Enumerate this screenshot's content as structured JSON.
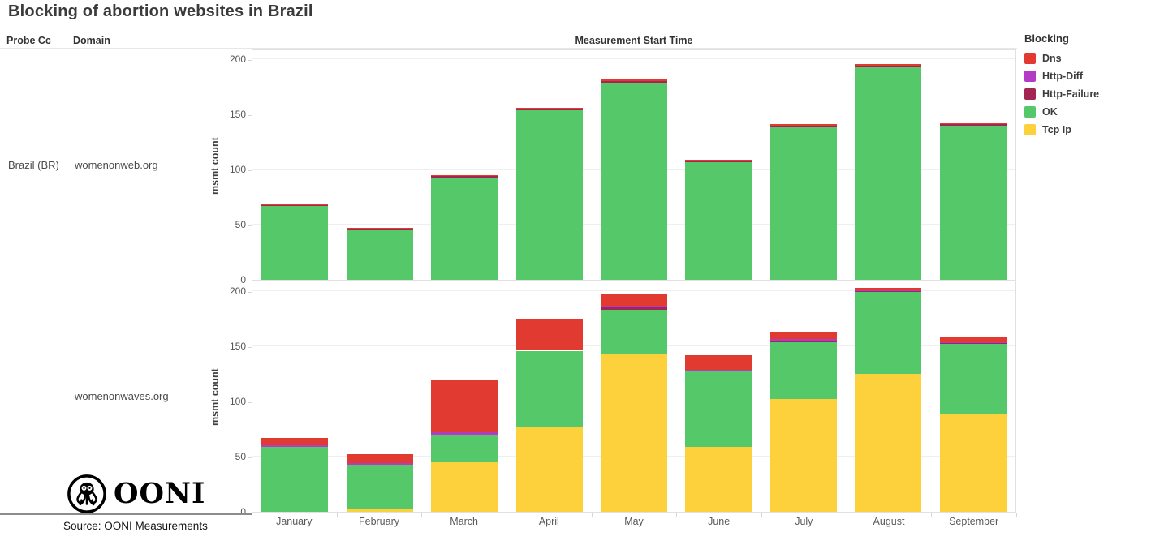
{
  "title": "Blocking of abortion websites in Brazil",
  "table_headers": {
    "probe_cc": "Probe Cc",
    "domain": "Domain"
  },
  "source": "Source: OONI Measurements",
  "logo": {
    "text": "OONI",
    "icon": "ooni-octopus-icon"
  },
  "legend": {
    "title": "Blocking",
    "position": "top-right",
    "items": [
      {
        "label": "Dns",
        "color": "#e13a30"
      },
      {
        "label": "Http-Diff",
        "color": "#b43bc6"
      },
      {
        "label": "Http-Failure",
        "color": "#a32552"
      },
      {
        "label": "OK",
        "color": "#55c96a"
      },
      {
        "label": "Tcp Ip",
        "color": "#fcd13b"
      }
    ]
  },
  "chart_data": {
    "type": "bar",
    "stacked": true,
    "x_title": "Measurement Start Time",
    "ylabel": "msmt count",
    "ylim": [
      0,
      200
    ],
    "yticks": [
      0,
      50,
      100,
      150,
      200
    ],
    "grid": true,
    "categories": [
      "January",
      "February",
      "March",
      "April",
      "May",
      "June",
      "July",
      "August",
      "September"
    ],
    "stack_order_bottom_to_top": [
      "Tcp Ip",
      "OK",
      "Http-Failure",
      "Http-Diff",
      "Dns"
    ],
    "facets": [
      {
        "probe_cc": "Brazil (BR)",
        "domain": "womenonweb.org",
        "series": [
          {
            "name": "Tcp Ip",
            "values": [
              0,
              0,
              0,
              0,
              0,
              0,
              0,
              0,
              0
            ]
          },
          {
            "name": "OK",
            "values": [
              67,
              45,
              93,
              154,
              179,
              107,
              139,
              193,
              140
            ]
          },
          {
            "name": "Http-Failure",
            "values": [
              1,
              1,
              1,
              1,
              1,
              1,
              1,
              1,
              1
            ]
          },
          {
            "name": "Http-Diff",
            "values": [
              0,
              0,
              0,
              0,
              0,
              0,
              0,
              0,
              0
            ]
          },
          {
            "name": "Dns",
            "values": [
              1,
              1,
              1,
              1,
              2,
              1,
              1,
              2,
              1
            ]
          }
        ],
        "totals": [
          69,
          47,
          95,
          156,
          182,
          109,
          141,
          196,
          142
        ]
      },
      {
        "probe_cc": "",
        "domain": "womenonwaves.org",
        "series": [
          {
            "name": "Tcp Ip",
            "values": [
              0,
              2,
              45,
              77,
              143,
              59,
              102,
              125,
              89
            ]
          },
          {
            "name": "OK",
            "values": [
              59,
              41,
              25,
              69,
              40,
              68,
              52,
              74,
              63
            ]
          },
          {
            "name": "Http-Failure",
            "values": [
              0,
              0,
              0,
              0,
              2,
              1,
              1,
              1,
              1
            ]
          },
          {
            "name": "Http-Diff",
            "values": [
              1,
              1,
              2,
              1,
              2,
              1,
              2,
              1,
              1
            ]
          },
          {
            "name": "Dns",
            "values": [
              7,
              8,
              47,
              28,
              11,
              13,
              6,
              2,
              5
            ]
          }
        ],
        "totals": [
          67,
          52,
          119,
          175,
          198,
          142,
          163,
          203,
          159
        ]
      }
    ]
  }
}
